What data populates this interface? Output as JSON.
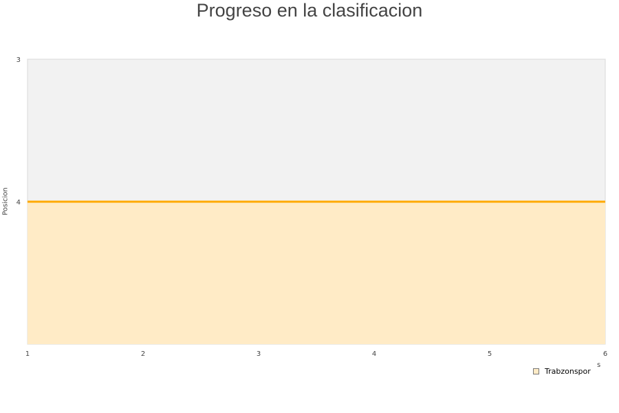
{
  "chart_data": {
    "type": "area",
    "title": "Progreso en la clasificacion",
    "xlabel": "s",
    "ylabel": "Posicion",
    "x": [
      1,
      2,
      3,
      4,
      5,
      6
    ],
    "xlim": [
      1,
      6
    ],
    "ylim": [
      3,
      5
    ],
    "y_reversed": true,
    "y_ticks": [
      3,
      4
    ],
    "grid": false,
    "legend": "bottom-right",
    "series": [
      {
        "name": "Trabzonspor",
        "values": [
          4,
          4,
          4,
          4,
          4,
          4
        ],
        "line_color": "#ffaa00",
        "fill_color": "#ffebc6"
      }
    ],
    "plot_background": "#f2f2f2"
  }
}
